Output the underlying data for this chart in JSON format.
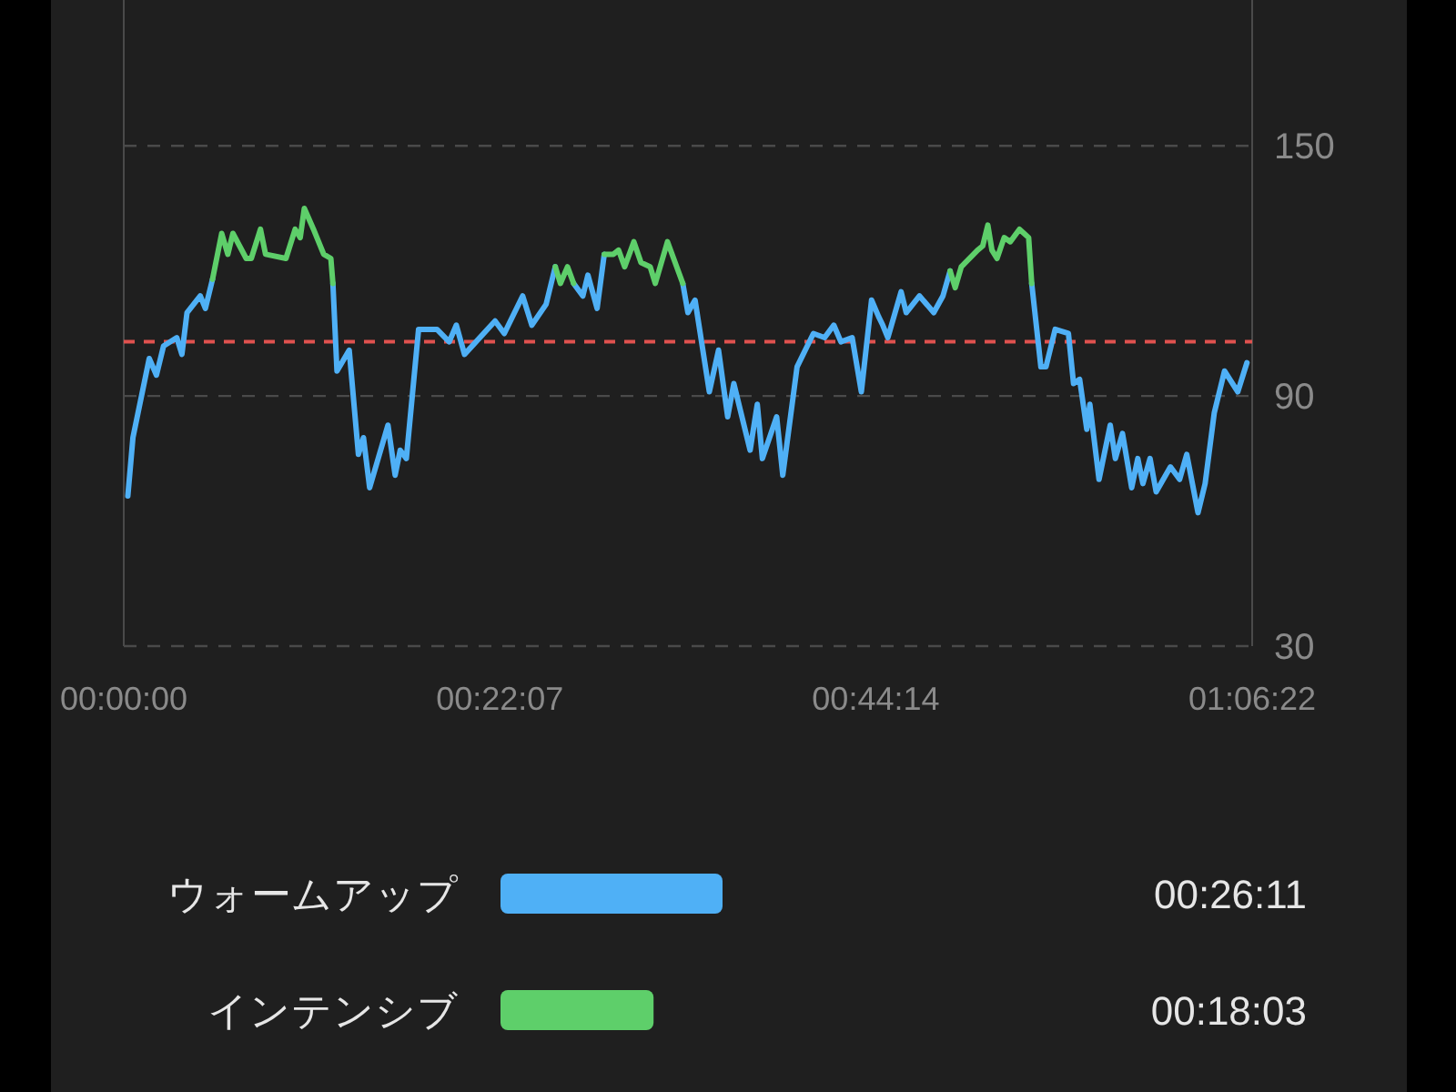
{
  "chart_data": [
    {
      "type": "line",
      "xlim": [
        0,
        1.1061
      ],
      "xticks": [
        {
          "value": 0,
          "label": "00:00:00"
        },
        {
          "value": 0.3686,
          "label": "00:22:07"
        },
        {
          "value": 0.7372,
          "label": "00:44:14"
        },
        {
          "value": 1.1061,
          "label": "01:06:22"
        }
      ],
      "ylim": [
        30,
        185
      ],
      "yticks": [
        30,
        90,
        150
      ],
      "grid": "y",
      "ref_lines": [
        {
          "axis": "y",
          "value": 103,
          "color": "#e0524f",
          "line_style": "dashed"
        }
      ],
      "series": [
        {
          "color": "#4fb0f6",
          "x": [
            0.004,
            0.009,
            0.025,
            0.032,
            0.039,
            0.052,
            0.057,
            0.062,
            0.075,
            0.08,
            0.087,
            null,
            0.205,
            0.209,
            0.221,
            0.23,
            0.235,
            0.241,
            0.259,
            0.266,
            0.271,
            0.277,
            0.289,
            0.307,
            0.319,
            0.326,
            0.334,
            0.364,
            0.373,
            0.391,
            0.4,
            0.414,
            0.417,
            0.423,
            null,
            0.441,
            0.45,
            0.455,
            0.464,
            0.471,
            null,
            0.548,
            0.553,
            0.56,
            0.574,
            0.583,
            0.592,
            0.598,
            0.614,
            0.621,
            0.626,
            0.64,
            0.646,
            0.66,
            0.676,
            0.687,
            0.696,
            0.703,
            0.714,
            0.723,
            0.733,
            0.74,
            0.744,
            0.749,
            0.762,
            0.767,
            0.78,
            0.794,
            0.803,
            0.81,
            null,
            0.89,
            0.899,
            0.904,
            0.913,
            0.926,
            0.931,
            0.937,
            0.944,
            0.947,
            0.956,
            0.967,
            0.972,
            0.979,
            0.988,
            0.994,
            0.999,
            1.006,
            1.012,
            1.026,
            1.035,
            1.042,
            1.053,
            1.06,
            1.069,
            1.079,
            1.092,
            1.101
          ],
          "values": [
            66,
            80,
            99,
            95,
            102,
            104,
            100,
            110,
            114,
            111,
            118,
            null,
            117,
            96,
            101,
            76,
            80,
            68,
            83,
            71,
            77,
            75,
            106,
            106,
            103,
            107,
            100,
            108,
            105,
            114,
            107,
            112,
            115,
            121,
            null,
            117,
            114,
            119,
            111,
            124,
            null,
            117,
            110,
            113,
            91,
            101,
            85,
            93,
            77,
            88,
            75,
            85,
            71,
            97,
            105,
            104,
            107,
            103,
            104,
            91,
            113,
            109,
            107,
            104,
            115,
            110,
            114,
            110,
            114,
            120,
            null,
            117,
            97,
            97,
            106,
            105,
            93,
            94,
            82,
            88,
            70,
            83,
            75,
            81,
            68,
            75,
            69,
            75,
            67,
            73,
            70,
            76,
            62,
            69,
            86,
            96,
            91,
            98
          ]
        },
        {
          "color": "#5ecf6a",
          "x": [
            0.087,
            0.096,
            0.102,
            0.107,
            0.12,
            0.125,
            0.134,
            0.139,
            0.159,
            0.168,
            0.173,
            0.177,
            0.186,
            0.196,
            0.203,
            0.205,
            null,
            0.423,
            0.428,
            0.435,
            0.441,
            null,
            0.471,
            0.48,
            0.485,
            0.491,
            0.5,
            0.507,
            0.516,
            0.521,
            0.533,
            0.539,
            0.548,
            null,
            0.81,
            0.815,
            0.821,
            0.837,
            0.842,
            0.847,
            0.851,
            0.856,
            0.863,
            0.869,
            0.878,
            0.887,
            0.89
          ],
          "values": [
            118,
            129,
            124,
            129,
            123,
            123,
            130,
            124,
            123,
            130,
            128,
            135,
            130,
            124,
            123,
            117,
            null,
            121,
            117,
            121,
            117,
            null,
            124,
            124,
            125,
            121,
            127,
            122,
            121,
            117,
            127,
            123,
            117,
            null,
            120,
            116,
            121,
            125,
            126,
            131,
            125,
            123,
            128,
            127,
            130,
            128,
            117
          ]
        }
      ]
    },
    {
      "type": "bar",
      "orientation": "horizontal",
      "categories": [
        "ウォームアップ",
        "インテンシブ"
      ],
      "values": [
        0.43639,
        0.30083
      ],
      "colors": [
        "#4fb0f6",
        "#5ecf6a"
      ],
      "value_labels": [
        "00:26:11",
        "00:18:03"
      ]
    }
  ]
}
